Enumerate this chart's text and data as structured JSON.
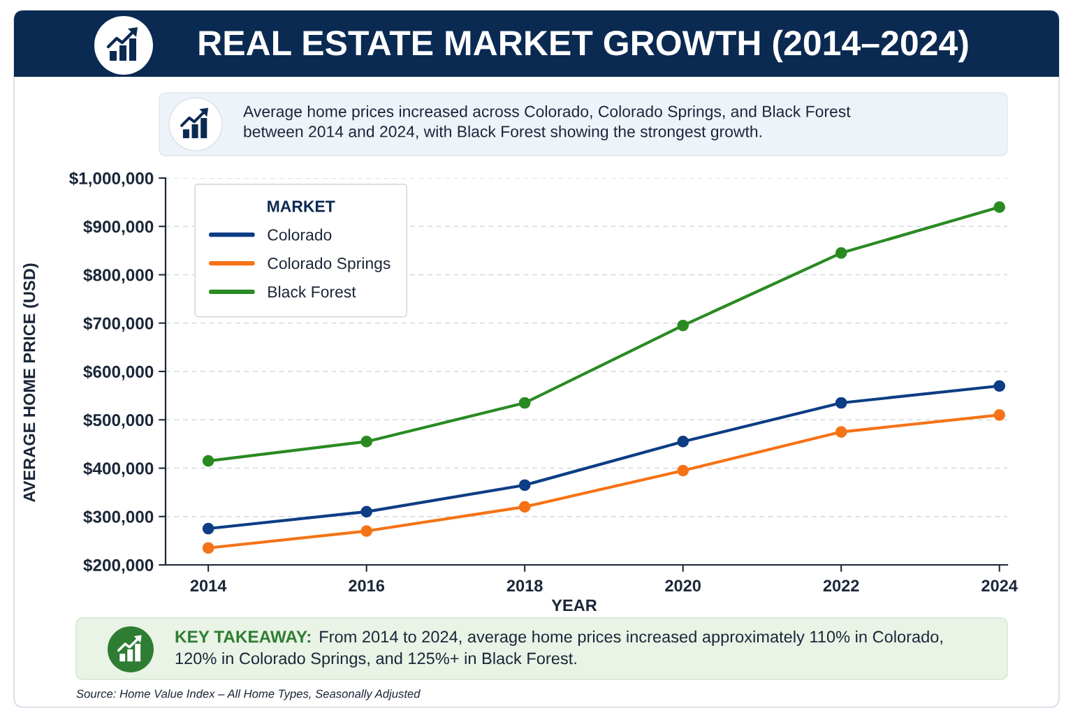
{
  "chart_data": {
    "type": "line",
    "title": "REAL ESTATE MARKET GROWTH (2014–2024)",
    "subtitle": "Average home prices increased across Colorado, Colorado Springs, and Black Forest\nbetween 2014 and 2024, with Black Forest showing the strongest growth.",
    "xlabel": "YEAR",
    "ylabel": "AVERAGE HOME PRICE (USD)",
    "legend_title": "MARKET",
    "annotations": [
      "KEY TAKEAWAY:",
      "From 2014 to 2024, average home prices increased approximately 110% in Colorado,",
      "120% in Colorado Springs, and 125%+ in Black Forest.",
      "Source: Home Value Index – All Home Types, Seasonally Adjusted"
    ],
    "x": [
      2014,
      2016,
      2018,
      2020,
      2022,
      2024
    ],
    "series": [
      {
        "name": "Colorado",
        "color": "#0d3d84",
        "values": [
          275000,
          310000,
          365000,
          455000,
          535000,
          570000
        ]
      },
      {
        "name": "Colorado Springs",
        "color": "#f57316",
        "values": [
          235000,
          270000,
          320000,
          395000,
          475000,
          510000
        ]
      },
      {
        "name": "Black Forest",
        "color": "#2a8a22",
        "values": [
          415000,
          455000,
          535000,
          695000,
          845000,
          940000
        ]
      }
    ],
    "xlim": [
      2013.46,
      2024.1
    ],
    "ylim": [
      200000,
      1000000
    ],
    "xticks": [
      2014,
      2016,
      2018,
      2020,
      2022,
      2024
    ],
    "yticks": [
      {
        "value": 200000,
        "label": "$200,000"
      },
      {
        "value": 300000,
        "label": "$300,000"
      },
      {
        "value": 400000,
        "label": "$400,000"
      },
      {
        "value": 500000,
        "label": "$500,000"
      },
      {
        "value": 600000,
        "label": "$600,000"
      },
      {
        "value": 700000,
        "label": "$700,000"
      },
      {
        "value": 800000,
        "label": "$800,000"
      },
      {
        "value": 900000,
        "label": "$900,000"
      },
      {
        "value": 1000000,
        "label": "$1,000,000"
      }
    ],
    "grid": "y",
    "legend": "top left",
    "marker": "circle",
    "line_style": "solid"
  }
}
